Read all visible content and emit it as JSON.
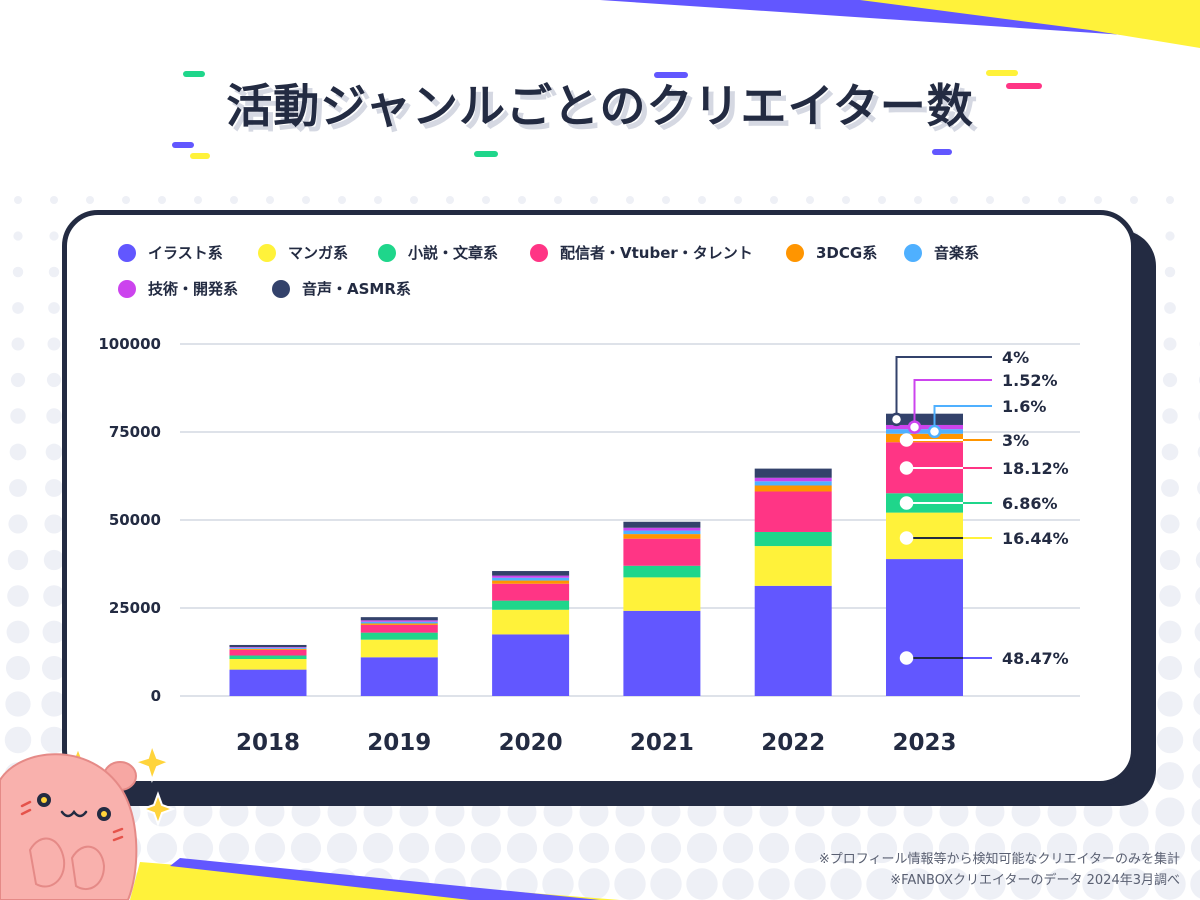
{
  "title": "活動ジャンルごとのクリエイター数",
  "footnotes": [
    "※プロフィール情報等から検知可能なクリエイターのみを集計",
    "※FANBOXクリエイターのデータ 2024年3月調べ"
  ],
  "colors": {
    "ink": "#232b42",
    "accent_purple": "#6257ff",
    "accent_yellow": "#fff23a",
    "bg_dot": "#eef0f6"
  },
  "chart_data": {
    "type": "bar",
    "stacked": true,
    "title": "",
    "xlabel": "",
    "ylabel": "",
    "categories": [
      "2018",
      "2019",
      "2020",
      "2021",
      "2022",
      "2023"
    ],
    "ylim": [
      0,
      100000
    ],
    "yticks": [
      0,
      25000,
      50000,
      75000,
      100000
    ],
    "grid": true,
    "legend_position": "top-left",
    "series": [
      {
        "name": "イラスト系",
        "color": "#6257ff",
        "values": [
          7500,
          11000,
          17500,
          24200,
          31300,
          38900
        ]
      },
      {
        "name": "マンガ系",
        "color": "#fff23a",
        "values": [
          3000,
          5000,
          7000,
          9500,
          11300,
          13200
        ]
      },
      {
        "name": "小説・文章系",
        "color": "#1fd68b",
        "values": [
          1000,
          2000,
          2600,
          3300,
          4000,
          5500
        ]
      },
      {
        "name": "配信者・Vtuber・タレント",
        "color": "#ff3585",
        "values": [
          1600,
          2200,
          4800,
          7700,
          11500,
          14500
        ]
      },
      {
        "name": "3DCG系",
        "color": "#ff9500",
        "values": [
          300,
          400,
          900,
          1300,
          1700,
          2400
        ]
      },
      {
        "name": "音楽系",
        "color": "#4fb0ff",
        "values": [
          300,
          500,
          800,
          1000,
          1200,
          1300
        ]
      },
      {
        "name": "技術・開発系",
        "color": "#cc44ee",
        "values": [
          200,
          400,
          600,
          800,
          1000,
          1200
        ]
      },
      {
        "name": "音声・ASMR系",
        "color": "#33426b",
        "values": [
          600,
          900,
          1300,
          1700,
          2600,
          3200
        ]
      }
    ],
    "annotations_2023": [
      {
        "series": "音声・ASMR系",
        "label": "4%"
      },
      {
        "series": "技術・開発系",
        "label": "1.52%"
      },
      {
        "series": "音楽系",
        "label": "1.6%"
      },
      {
        "series": "3DCG系",
        "label": "3%"
      },
      {
        "series": "配信者・Vtuber・タレント",
        "label": "18.12%"
      },
      {
        "series": "小説・文章系",
        "label": "6.86%"
      },
      {
        "series": "マンガ系",
        "label": "16.44%"
      },
      {
        "series": "イラスト系",
        "label": "48.47%"
      }
    ]
  }
}
